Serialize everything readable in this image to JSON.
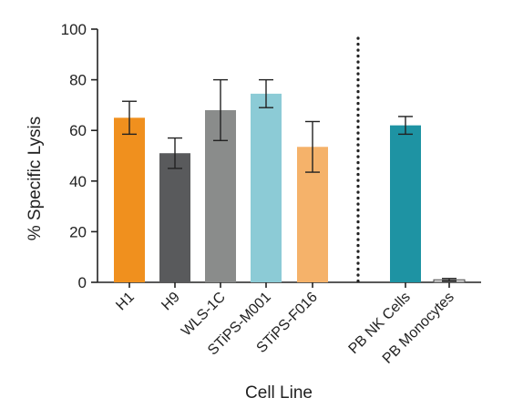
{
  "chart_data": {
    "type": "bar",
    "xlabel": "Cell Line",
    "ylabel": "% Specific Lysis",
    "ylim": [
      0,
      100
    ],
    "yticks": [
      0,
      20,
      40,
      60,
      80,
      100
    ],
    "grid": false,
    "categories": [
      "H1",
      "H9",
      "WLS-1C",
      "STiPS-M001",
      "STiPS-F016",
      "PB NK Cells",
      "PB Monocytes"
    ],
    "values": [
      65,
      51,
      68,
      74.5,
      53.5,
      62,
      1
    ],
    "errors": [
      6.5,
      6,
      12,
      5.5,
      10,
      3.5,
      0.5
    ],
    "colors": [
      "#f0901e",
      "#595a5c",
      "#8a8c8b",
      "#8ccbd6",
      "#f5b26a",
      "#1e93a3",
      "#e8e8e8"
    ],
    "separator_after_index": 4
  }
}
